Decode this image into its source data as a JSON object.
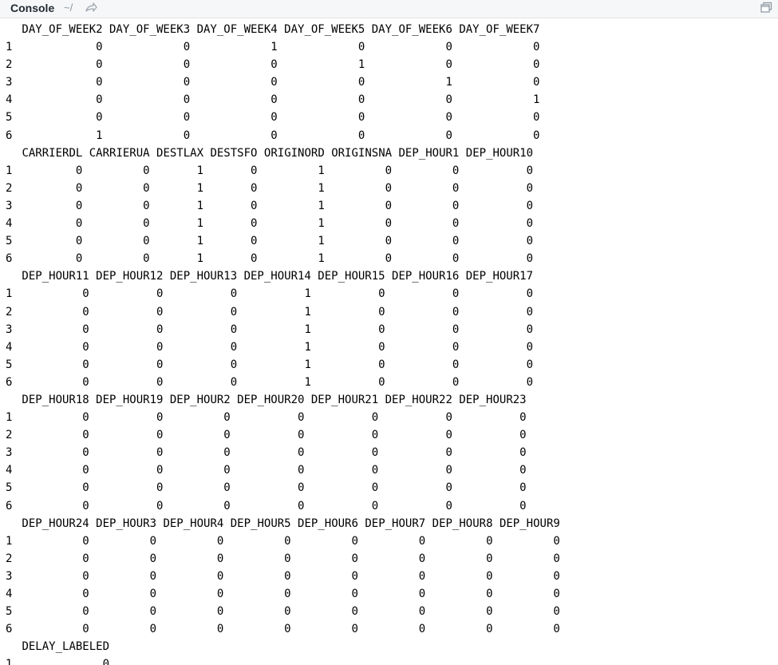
{
  "header": {
    "title": "Console",
    "path": "~/",
    "arrow_icon": "goto-directory-icon",
    "maximize_icon": "maximize-icon"
  },
  "console": {
    "blocks": [
      {
        "headers": [
          "DAY_OF_WEEK2",
          "DAY_OF_WEEK3",
          "DAY_OF_WEEK4",
          "DAY_OF_WEEK5",
          "DAY_OF_WEEK6",
          "DAY_OF_WEEK7"
        ],
        "rows": [
          {
            "n": "1",
            "v": [
              "0",
              "0",
              "1",
              "0",
              "0",
              "0"
            ]
          },
          {
            "n": "2",
            "v": [
              "0",
              "0",
              "0",
              "1",
              "0",
              "0"
            ]
          },
          {
            "n": "3",
            "v": [
              "0",
              "0",
              "0",
              "0",
              "1",
              "0"
            ]
          },
          {
            "n": "4",
            "v": [
              "0",
              "0",
              "0",
              "0",
              "0",
              "1"
            ]
          },
          {
            "n": "5",
            "v": [
              "0",
              "0",
              "0",
              "0",
              "0",
              "0"
            ]
          },
          {
            "n": "6",
            "v": [
              "1",
              "0",
              "0",
              "0",
              "0",
              "0"
            ]
          }
        ]
      },
      {
        "headers": [
          "CARRIERDL",
          "CARRIERUA",
          "DESTLAX",
          "DESTSFO",
          "ORIGINORD",
          "ORIGINSNA",
          "DEP_HOUR1",
          "DEP_HOUR10"
        ],
        "rows": [
          {
            "n": "1",
            "v": [
              "0",
              "0",
              "1",
              "0",
              "1",
              "0",
              "0",
              "0"
            ]
          },
          {
            "n": "2",
            "v": [
              "0",
              "0",
              "1",
              "0",
              "1",
              "0",
              "0",
              "0"
            ]
          },
          {
            "n": "3",
            "v": [
              "0",
              "0",
              "1",
              "0",
              "1",
              "0",
              "0",
              "0"
            ]
          },
          {
            "n": "4",
            "v": [
              "0",
              "0",
              "1",
              "0",
              "1",
              "0",
              "0",
              "0"
            ]
          },
          {
            "n": "5",
            "v": [
              "0",
              "0",
              "1",
              "0",
              "1",
              "0",
              "0",
              "0"
            ]
          },
          {
            "n": "6",
            "v": [
              "0",
              "0",
              "1",
              "0",
              "1",
              "0",
              "0",
              "0"
            ]
          }
        ]
      },
      {
        "headers": [
          "DEP_HOUR11",
          "DEP_HOUR12",
          "DEP_HOUR13",
          "DEP_HOUR14",
          "DEP_HOUR15",
          "DEP_HOUR16",
          "DEP_HOUR17"
        ],
        "rows": [
          {
            "n": "1",
            "v": [
              "0",
              "0",
              "0",
              "1",
              "0",
              "0",
              "0"
            ]
          },
          {
            "n": "2",
            "v": [
              "0",
              "0",
              "0",
              "1",
              "0",
              "0",
              "0"
            ]
          },
          {
            "n": "3",
            "v": [
              "0",
              "0",
              "0",
              "1",
              "0",
              "0",
              "0"
            ]
          },
          {
            "n": "4",
            "v": [
              "0",
              "0",
              "0",
              "1",
              "0",
              "0",
              "0"
            ]
          },
          {
            "n": "5",
            "v": [
              "0",
              "0",
              "0",
              "1",
              "0",
              "0",
              "0"
            ]
          },
          {
            "n": "6",
            "v": [
              "0",
              "0",
              "0",
              "1",
              "0",
              "0",
              "0"
            ]
          }
        ]
      },
      {
        "headers": [
          "DEP_HOUR18",
          "DEP_HOUR19",
          "DEP_HOUR2",
          "DEP_HOUR20",
          "DEP_HOUR21",
          "DEP_HOUR22",
          "DEP_HOUR23"
        ],
        "rows": [
          {
            "n": "1",
            "v": [
              "0",
              "0",
              "0",
              "0",
              "0",
              "0",
              "0"
            ]
          },
          {
            "n": "2",
            "v": [
              "0",
              "0",
              "0",
              "0",
              "0",
              "0",
              "0"
            ]
          },
          {
            "n": "3",
            "v": [
              "0",
              "0",
              "0",
              "0",
              "0",
              "0",
              "0"
            ]
          },
          {
            "n": "4",
            "v": [
              "0",
              "0",
              "0",
              "0",
              "0",
              "0",
              "0"
            ]
          },
          {
            "n": "5",
            "v": [
              "0",
              "0",
              "0",
              "0",
              "0",
              "0",
              "0"
            ]
          },
          {
            "n": "6",
            "v": [
              "0",
              "0",
              "0",
              "0",
              "0",
              "0",
              "0"
            ]
          }
        ]
      },
      {
        "headers": [
          "DEP_HOUR24",
          "DEP_HOUR3",
          "DEP_HOUR4",
          "DEP_HOUR5",
          "DEP_HOUR6",
          "DEP_HOUR7",
          "DEP_HOUR8",
          "DEP_HOUR9"
        ],
        "rows": [
          {
            "n": "1",
            "v": [
              "0",
              "0",
              "0",
              "0",
              "0",
              "0",
              "0",
              "0"
            ]
          },
          {
            "n": "2",
            "v": [
              "0",
              "0",
              "0",
              "0",
              "0",
              "0",
              "0",
              "0"
            ]
          },
          {
            "n": "3",
            "v": [
              "0",
              "0",
              "0",
              "0",
              "0",
              "0",
              "0",
              "0"
            ]
          },
          {
            "n": "4",
            "v": [
              "0",
              "0",
              "0",
              "0",
              "0",
              "0",
              "0",
              "0"
            ]
          },
          {
            "n": "5",
            "v": [
              "0",
              "0",
              "0",
              "0",
              "0",
              "0",
              "0",
              "0"
            ]
          },
          {
            "n": "6",
            "v": [
              "0",
              "0",
              "0",
              "0",
              "0",
              "0",
              "0",
              "0"
            ]
          }
        ]
      },
      {
        "headers": [
          "DELAY_LABELED"
        ],
        "rows": [
          {
            "n": "1",
            "v": [
              "0"
            ]
          }
        ]
      }
    ]
  }
}
